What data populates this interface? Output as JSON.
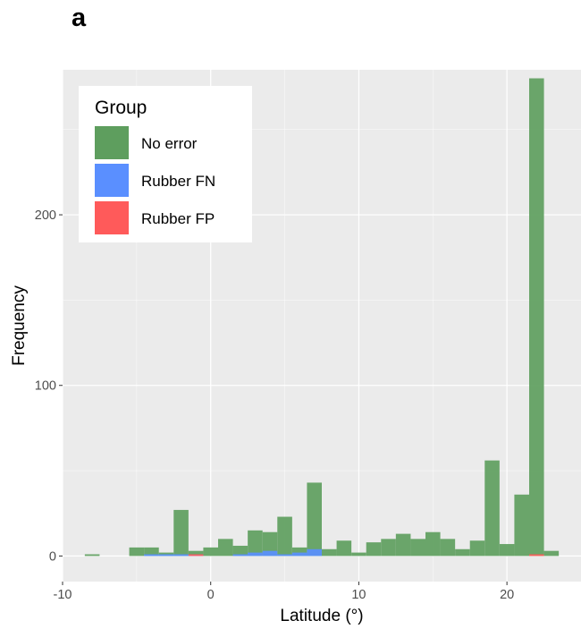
{
  "panel_letter": "a",
  "colors": {
    "panel_background": "#EBEBEB",
    "grid_major": "#FFFFFF",
    "tick_text": "#4D4D4D",
    "axis_title": "#000000",
    "no_error": "#5E9E5E",
    "rubber_fn": "#5A8FFF",
    "rubber_fp": "#FF5A5A"
  },
  "chart_data": {
    "type": "bar",
    "subtype": "overlapping histogram",
    "xlabel": "Latitude (°)",
    "ylabel": "Frequency",
    "xlim": [
      -10,
      25
    ],
    "ylim": [
      -15,
      285
    ],
    "x_ticks": [
      -10,
      0,
      10,
      20
    ],
    "y_ticks": [
      0,
      100,
      200
    ],
    "grid": true,
    "legend": {
      "title": "Group",
      "position": "top-left",
      "entries": [
        "No error",
        "Rubber FN",
        "Rubber FP"
      ]
    },
    "bin_width": 1,
    "bin_starts": [
      -8.5,
      -5.5,
      -4.5,
      -3.5,
      -2.5,
      -1.5,
      -0.5,
      0.5,
      1.5,
      2.5,
      3.5,
      4.5,
      5.5,
      6.5,
      7.5,
      8.5,
      9.5,
      10.5,
      11.5,
      12.5,
      13.5,
      14.5,
      15.5,
      16.5,
      17.5,
      18.5,
      19.5,
      20.5,
      21.5,
      22.5
    ],
    "series": [
      {
        "name": "No error",
        "color": "#5E9E5E",
        "values": [
          1,
          5,
          5,
          2,
          27,
          3,
          5,
          10,
          6,
          15,
          14,
          23,
          5,
          43,
          4,
          9,
          2,
          8,
          10,
          13,
          10,
          14,
          10,
          4,
          9,
          56,
          7,
          36,
          280,
          3
        ]
      },
      {
        "name": "Rubber FN",
        "color": "#5A8FFF",
        "values": [
          0,
          0,
          1,
          1,
          1,
          1,
          0,
          0,
          1,
          2,
          3,
          1,
          2,
          4,
          0,
          0,
          0,
          0,
          0,
          0,
          0,
          0,
          0,
          0,
          0,
          0,
          0,
          0,
          0,
          0
        ]
      },
      {
        "name": "Rubber FP",
        "color": "#FF5A5A",
        "values": [
          0,
          0,
          0,
          0,
          0,
          1,
          0,
          0,
          0,
          0,
          0,
          0,
          0,
          0,
          0,
          0,
          0,
          0,
          0,
          0,
          0,
          0,
          0,
          0,
          0,
          0,
          0,
          0,
          1,
          0
        ]
      }
    ]
  }
}
